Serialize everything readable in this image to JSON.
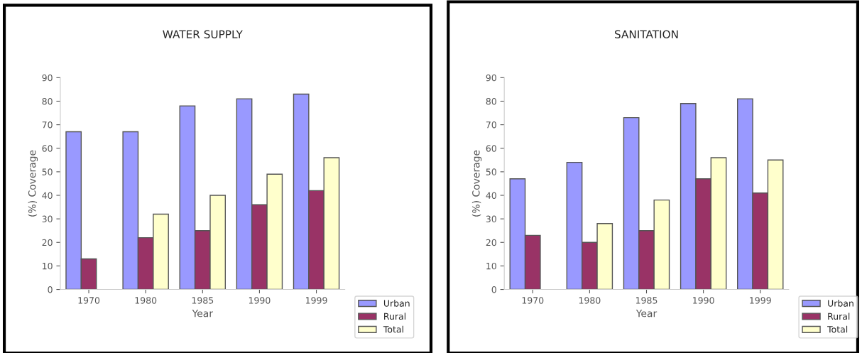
{
  "chart_data": [
    {
      "type": "bar",
      "title": "WATER SUPPLY",
      "xlabel": "Year",
      "ylabel": "(%) Coverage",
      "categories": [
        "1970",
        "1980",
        "1985",
        "1990",
        "1999"
      ],
      "series": [
        {
          "name": "Urban",
          "color": "#9999ff",
          "values": [
            67,
            67,
            78,
            81,
            83
          ]
        },
        {
          "name": "Rural",
          "color": "#993366",
          "values": [
            13,
            22,
            25,
            36,
            42
          ]
        },
        {
          "name": "Total",
          "color": "#ffffcc",
          "values": [
            null,
            32,
            40,
            49,
            56
          ]
        }
      ],
      "ylim": [
        0,
        90
      ],
      "yticks": [
        0,
        10,
        20,
        30,
        40,
        50,
        60,
        70,
        80,
        90
      ],
      "legend": "bottom right",
      "grid": false
    },
    {
      "type": "bar",
      "title": "SANITATION",
      "xlabel": "Year",
      "ylabel": "(%) Coverage",
      "categories": [
        "1970",
        "1980",
        "1985",
        "1990",
        "1999"
      ],
      "series": [
        {
          "name": "Urban",
          "color": "#9999ff",
          "values": [
            47,
            54,
            73,
            79,
            81
          ]
        },
        {
          "name": "Rural",
          "color": "#993366",
          "values": [
            23,
            20,
            25,
            47,
            41
          ]
        },
        {
          "name": "Total",
          "color": "#ffffcc",
          "values": [
            null,
            28,
            38,
            56,
            55
          ]
        }
      ],
      "ylim": [
        0,
        90
      ],
      "yticks": [
        0,
        10,
        20,
        30,
        40,
        50,
        60,
        70,
        80,
        90
      ],
      "legend": "bottom right",
      "grid": false
    }
  ]
}
